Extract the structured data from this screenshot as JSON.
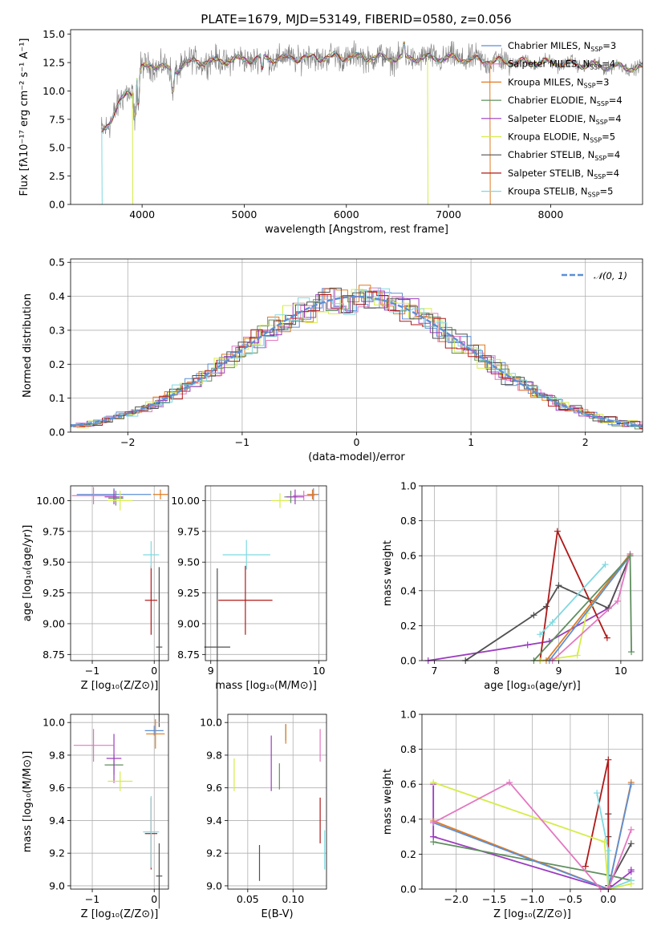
{
  "figure": {
    "title": "PLATE=1679, MJD=53149, FIBERID=0580, z=0.056"
  },
  "colors": {
    "chabrier_miles": "#5b8fd6",
    "salpeter_miles": "#e377c2",
    "kroupa_miles": "#e07b20",
    "chabrier_elodie": "#5f8f5f",
    "salpeter_elodie": "#9b3cbf",
    "kroupa_elodie": "#d6ec4a",
    "chabrier_stelib": "#505050",
    "salpeter_stelib": "#b01818",
    "kroupa_stelib": "#7fd9e0",
    "data": "#7f7f7f"
  },
  "chart_data": [
    {
      "id": "spectrum",
      "type": "line",
      "xlabel": "wavelength [Angstrom, rest frame]",
      "ylabel": "Flux [fλ10⁻¹⁷ erg cm⁻² s⁻¹ A⁻¹]",
      "xlim": [
        3300,
        8900
      ],
      "ylim": [
        0,
        15.4
      ],
      "xticks": [
        "4000",
        "5000",
        "6000",
        "7000",
        "8000"
      ],
      "yticks": [
        "0.0",
        "2.5",
        "5.0",
        "7.5",
        "10.0",
        "12.5",
        "15.0"
      ],
      "grid": false,
      "legend_position": "right",
      "legend": [
        {
          "label": "Chabrier MILES, N",
          "sub": "SSP",
          "suffix": "=3",
          "color_key": "chabrier_miles"
        },
        {
          "label": "Salpeter MILES, N",
          "sub": "SSP",
          "suffix": "=4",
          "color_key": "salpeter_miles"
        },
        {
          "label": "Kroupa MILES, N",
          "sub": "SSP",
          "suffix": "=3",
          "color_key": "kroupa_miles"
        },
        {
          "label": "Chabrier ELODIE, N",
          "sub": "SSP",
          "suffix": "=4",
          "color_key": "chabrier_elodie"
        },
        {
          "label": "Salpeter ELODIE, N",
          "sub": "SSP",
          "suffix": "=4",
          "color_key": "salpeter_elodie"
        },
        {
          "label": "Kroupa ELODIE, N",
          "sub": "SSP",
          "suffix": "=5",
          "color_key": "kroupa_elodie"
        },
        {
          "label": "Chabrier STELIB, N",
          "sub": "SSP",
          "suffix": "=4",
          "color_key": "chabrier_stelib"
        },
        {
          "label": "Salpeter STELIB, N",
          "sub": "SSP",
          "suffix": "=4",
          "color_key": "salpeter_stelib"
        },
        {
          "label": "Kroupa STELIB, N",
          "sub": "SSP",
          "suffix": "=5",
          "color_key": "kroupa_stelib"
        }
      ],
      "continuum": {
        "x": [
          3600,
          3650,
          3700,
          3750,
          3800,
          3850,
          3900,
          3950,
          4000,
          4100,
          4200,
          4300,
          4400,
          4500,
          4700,
          5000,
          5500,
          6000,
          6500,
          7000,
          7500,
          8000,
          8500,
          8900
        ],
        "y": [
          6.5,
          7.0,
          7.5,
          8.3,
          9.2,
          10.0,
          9.8,
          11.0,
          12.0,
          12.3,
          12.2,
          11.6,
          12.3,
          12.6,
          12.6,
          12.8,
          12.9,
          13.0,
          12.9,
          12.9,
          12.6,
          12.5,
          12.2,
          12.0
        ]
      },
      "drops": [
        {
          "x": 3605,
          "color_key": "kroupa_stelib"
        },
        {
          "x": 3905,
          "color_key": "kroupa_elodie"
        },
        {
          "x": 6795,
          "color_key": "kroupa_elodie"
        },
        {
          "x": 7405,
          "color_key": "kroupa_miles"
        }
      ]
    },
    {
      "id": "residuals",
      "type": "bar",
      "xlabel": "(data-model)/error",
      "ylabel": "Normed distribution",
      "xlim": [
        -2.5,
        2.5
      ],
      "ylim": [
        0,
        0.51
      ],
      "xticks": [
        "−2",
        "−1",
        "0",
        "1",
        "2"
      ],
      "yticks": [
        "0.0",
        "0.1",
        "0.2",
        "0.3",
        "0.4",
        "0.5"
      ],
      "grid": true,
      "legend_position": "top-right",
      "legend_label": "𝒩(0, 1)",
      "bin_width": 0.1,
      "normal": {
        "mean": 0,
        "sigma": 1
      }
    },
    {
      "id": "age-vs-z",
      "type": "scatter",
      "xlabel": "Z [log₁₀(Z/Z⊙)]",
      "ylabel": "age  [log₁₀(age/yr)]",
      "xlim": [
        -1.35,
        0.23
      ],
      "ylim": [
        8.7,
        10.12
      ],
      "xticks": [
        "−1",
        "0"
      ],
      "yticks": [
        "8.75",
        "9.00",
        "9.25",
        "9.50",
        "9.75",
        "10.00"
      ],
      "grid": true,
      "points": [
        {
          "x": -0.65,
          "y": 10.05,
          "xerr": 0.6,
          "yerr": 0.05,
          "color_key": "chabrier_miles"
        },
        {
          "x": -0.98,
          "y": 10.04,
          "xerr": 0.35,
          "yerr": 0.07,
          "color_key": "salpeter_miles"
        },
        {
          "x": 0.1,
          "y": 10.05,
          "xerr": 0.12,
          "yerr": 0.04,
          "color_key": "kroupa_miles"
        },
        {
          "x": -0.62,
          "y": 10.02,
          "xerr": 0.12,
          "yerr": 0.06,
          "color_key": "chabrier_elodie"
        },
        {
          "x": -0.65,
          "y": 10.03,
          "xerr": 0.15,
          "yerr": 0.06,
          "color_key": "salpeter_elodie"
        },
        {
          "x": -0.55,
          "y": 10.0,
          "xerr": 0.2,
          "yerr": 0.08,
          "color_key": "kroupa_elodie"
        },
        {
          "x": 0.08,
          "y": 8.81,
          "xerr": 0.05,
          "yerr": 0.65,
          "color_key": "chabrier_stelib"
        },
        {
          "x": -0.05,
          "y": 9.19,
          "xerr": 0.1,
          "yerr": 0.28,
          "color_key": "salpeter_stelib"
        },
        {
          "x": -0.05,
          "y": 9.56,
          "xerr": 0.13,
          "yerr": 0.11,
          "color_key": "kroupa_stelib"
        }
      ]
    },
    {
      "id": "age-vs-mass",
      "type": "scatter",
      "xlabel": "mass [log₁₀(M/M⊙)]",
      "ylabel": "",
      "xlim": [
        8.95,
        10.07
      ],
      "ylim": [
        8.7,
        10.12
      ],
      "xticks": [
        "9",
        "10"
      ],
      "yticks": [
        "8.75",
        "9.00",
        "9.25",
        "9.50",
        "9.75",
        "10.00"
      ],
      "grid": true,
      "points": [
        {
          "x": 9.95,
          "y": 10.05,
          "xerr": 0.05,
          "yerr": 0.05,
          "color_key": "chabrier_miles"
        },
        {
          "x": 9.86,
          "y": 10.04,
          "xerr": 0.1,
          "yerr": 0.04,
          "color_key": "salpeter_miles"
        },
        {
          "x": 9.94,
          "y": 10.05,
          "xerr": 0.05,
          "yerr": 0.04,
          "color_key": "kroupa_miles"
        },
        {
          "x": 9.74,
          "y": 10.03,
          "xerr": 0.06,
          "yerr": 0.05,
          "color_key": "chabrier_elodie"
        },
        {
          "x": 9.78,
          "y": 10.03,
          "xerr": 0.08,
          "yerr": 0.06,
          "color_key": "salpeter_elodie"
        },
        {
          "x": 9.64,
          "y": 10.0,
          "xerr": 0.08,
          "yerr": 0.06,
          "color_key": "kroupa_elodie"
        },
        {
          "x": 9.06,
          "y": 8.81,
          "xerr": 0.12,
          "yerr": 0.64,
          "color_key": "chabrier_stelib"
        },
        {
          "x": 9.32,
          "y": 9.19,
          "xerr": 0.25,
          "yerr": 0.28,
          "color_key": "salpeter_stelib"
        },
        {
          "x": 9.33,
          "y": 9.56,
          "xerr": 0.22,
          "yerr": 0.12,
          "color_key": "kroupa_stelib"
        }
      ]
    },
    {
      "id": "weight-vs-age",
      "type": "line",
      "xlabel": "age  [log₁₀(age/yr)]",
      "ylabel": "mass weight",
      "xlim": [
        6.8,
        10.35
      ],
      "ylim": [
        0,
        1.0
      ],
      "xticks": [
        "7",
        "8",
        "9",
        "10"
      ],
      "yticks": [
        "0.0",
        "0.2",
        "0.4",
        "0.6",
        "0.8",
        "1.0"
      ],
      "grid": true,
      "series": [
        {
          "color_key": "salpeter_elodie",
          "x": [
            6.9,
            8.5,
            8.85,
            9.8,
            10.15
          ],
          "y": [
            0.0,
            0.09,
            0.11,
            0.3,
            0.6
          ]
        },
        {
          "color_key": "chabrier_stelib",
          "x": [
            7.5,
            8.6,
            8.8,
            9.0,
            9.8,
            10.15
          ],
          "y": [
            0.0,
            0.26,
            0.31,
            0.43,
            0.3,
            0.6
          ]
        },
        {
          "color_key": "salpeter_stelib",
          "x": [
            8.7,
            8.98,
            9.78
          ],
          "y": [
            0.0,
            0.74,
            0.13
          ]
        },
        {
          "color_key": "kroupa_stelib",
          "x": [
            8.7,
            8.9,
            9.75
          ],
          "y": [
            0.15,
            0.22,
            0.55
          ]
        },
        {
          "color_key": "kroupa_elodie",
          "x": [
            8.7,
            9.3,
            9.45,
            10.15
          ],
          "y": [
            0.0,
            0.03,
            0.27,
            0.61
          ]
        },
        {
          "color_key": "kroupa_miles",
          "x": [
            8.8,
            10.15
          ],
          "y": [
            0.0,
            0.61
          ]
        },
        {
          "color_key": "chabrier_miles",
          "x": [
            8.85,
            10.15
          ],
          "y": [
            0.0,
            0.6
          ]
        },
        {
          "color_key": "salpeter_miles",
          "x": [
            8.9,
            9.95,
            10.15
          ],
          "y": [
            0.0,
            0.34,
            0.61
          ]
        },
        {
          "color_key": "chabrier_elodie",
          "x": [
            8.6,
            10.15,
            10.17
          ],
          "y": [
            0.0,
            0.6,
            0.05
          ]
        }
      ]
    },
    {
      "id": "mass-vs-z",
      "type": "scatter",
      "xlabel": "Z [log₁₀(Z/Z⊙)]",
      "ylabel": "mass [log₁₀(M/M⊙)]",
      "xlim": [
        -1.35,
        0.23
      ],
      "ylim": [
        8.98,
        10.05
      ],
      "xticks": [
        "−1",
        "0"
      ],
      "yticks": [
        "9.0",
        "9.2",
        "9.4",
        "9.6",
        "9.8",
        "10.0"
      ],
      "grid": true,
      "points": [
        {
          "x": 0.0,
          "y": 9.95,
          "xerr": 0.15,
          "yerr": 0.03,
          "color_key": "chabrier_miles"
        },
        {
          "x": -0.98,
          "y": 9.86,
          "xerr": 0.32,
          "yerr": 0.1,
          "color_key": "salpeter_miles"
        },
        {
          "x": 0.02,
          "y": 9.93,
          "xerr": 0.15,
          "yerr": 0.09,
          "color_key": "kroupa_miles"
        },
        {
          "x": -0.65,
          "y": 9.74,
          "xerr": 0.15,
          "yerr": 0.06,
          "color_key": "chabrier_elodie"
        },
        {
          "x": -0.65,
          "y": 9.78,
          "xerr": 0.12,
          "yerr": 0.15,
          "color_key": "salpeter_elodie"
        },
        {
          "x": -0.55,
          "y": 9.64,
          "xerr": 0.2,
          "yerr": 0.06,
          "color_key": "kroupa_elodie"
        },
        {
          "x": 0.08,
          "y": 9.06,
          "xerr": 0.05,
          "yerr": 0.2,
          "color_key": "chabrier_stelib"
        },
        {
          "x": -0.05,
          "y": 9.32,
          "xerr": 0.1,
          "yerr": 0.22,
          "color_key": "salpeter_stelib"
        },
        {
          "x": -0.05,
          "y": 9.33,
          "xerr": 0.13,
          "yerr": 0.22,
          "color_key": "kroupa_stelib"
        }
      ]
    },
    {
      "id": "mass-vs-ebv",
      "type": "scatter",
      "xlabel": "E(B-V)",
      "ylabel": "",
      "xlim": [
        0.028,
        0.137
      ],
      "ylim": [
        8.98,
        10.05
      ],
      "xticks": [
        "0.05",
        "0.10"
      ],
      "yticks": [
        "9.0",
        "9.2",
        "9.4",
        "9.6",
        "9.8",
        "10.0"
      ],
      "grid": true,
      "points": [
        {
          "x": 0.092,
          "y": 9.94,
          "xerr": 0.0,
          "yerr": 0.05,
          "color_key": "chabrier_miles"
        },
        {
          "x": 0.13,
          "y": 9.86,
          "xerr": 0.0,
          "yerr": 0.1,
          "color_key": "salpeter_miles"
        },
        {
          "x": 0.092,
          "y": 9.93,
          "xerr": 0.0,
          "yerr": 0.06,
          "color_key": "kroupa_miles"
        },
        {
          "x": 0.085,
          "y": 9.67,
          "xerr": 0.0,
          "yerr": 0.08,
          "color_key": "chabrier_elodie"
        },
        {
          "x": 0.076,
          "y": 9.75,
          "xerr": 0.0,
          "yerr": 0.17,
          "color_key": "salpeter_elodie"
        },
        {
          "x": 0.035,
          "y": 9.68,
          "xerr": 0.0,
          "yerr": 0.1,
          "color_key": "kroupa_elodie"
        },
        {
          "x": 0.063,
          "y": 9.14,
          "xerr": 0.0,
          "yerr": 0.11,
          "color_key": "chabrier_stelib"
        },
        {
          "x": 0.13,
          "y": 9.4,
          "xerr": 0.0,
          "yerr": 0.14,
          "color_key": "salpeter_stelib"
        },
        {
          "x": 0.135,
          "y": 9.22,
          "xerr": 0.0,
          "yerr": 0.12,
          "color_key": "kroupa_stelib"
        }
      ]
    },
    {
      "id": "weight-vs-z",
      "type": "line",
      "xlabel": "Z [log₁₀(Z/Z⊙)]",
      "ylabel": "mass weight",
      "xlim": [
        -2.45,
        0.45
      ],
      "ylim": [
        0,
        1.0
      ],
      "xticks": [
        "−2.0",
        "−1.5",
        "−1.0",
        "−0.5",
        "0.0"
      ],
      "yticks": [
        "0.0",
        "0.2",
        "0.4",
        "0.6",
        "0.8",
        "1.0"
      ],
      "grid": true,
      "series": [
        {
          "color_key": "salpeter_elodie",
          "x": [
            -2.3,
            -2.3,
            -2.3,
            0.0,
            0.3,
            0.3
          ],
          "y": [
            0.6,
            0.3,
            0.3,
            0.0,
            0.1,
            0.11
          ]
        },
        {
          "color_key": "chabrier_elodie",
          "x": [
            -2.3,
            0.0,
            0.3
          ],
          "y": [
            0.27,
            0.08,
            0.05
          ]
        },
        {
          "color_key": "chabrier_stelib",
          "x": [
            0.0,
            0.0,
            0.0,
            0.3
          ],
          "y": [
            0.3,
            0.43,
            0.02,
            0.26
          ]
        },
        {
          "color_key": "salpeter_stelib",
          "x": [
            -0.3,
            0.0,
            0.0,
            0.0
          ],
          "y": [
            0.13,
            0.74,
            0.02,
            0.0
          ]
        },
        {
          "color_key": "kroupa_stelib",
          "x": [
            -0.15,
            0.0,
            0.0,
            0.3
          ],
          "y": [
            0.55,
            0.22,
            0.0,
            0.05
          ]
        },
        {
          "color_key": "kroupa_elodie",
          "x": [
            -2.3,
            -0.05,
            0.0,
            0.3
          ],
          "y": [
            0.61,
            0.27,
            0.0,
            0.03
          ]
        },
        {
          "color_key": "kroupa_miles",
          "x": [
            -2.3,
            0.0,
            0.3
          ],
          "y": [
            0.39,
            0.0,
            0.61
          ]
        },
        {
          "color_key": "chabrier_miles",
          "x": [
            -2.3,
            0.0,
            0.3
          ],
          "y": [
            0.38,
            0.0,
            0.6
          ]
        },
        {
          "color_key": "salpeter_miles",
          "x": [
            -2.3,
            -1.3,
            -0.1,
            0.0,
            0.3
          ],
          "y": [
            0.38,
            0.61,
            0.0,
            0.0,
            0.34
          ]
        }
      ]
    }
  ]
}
